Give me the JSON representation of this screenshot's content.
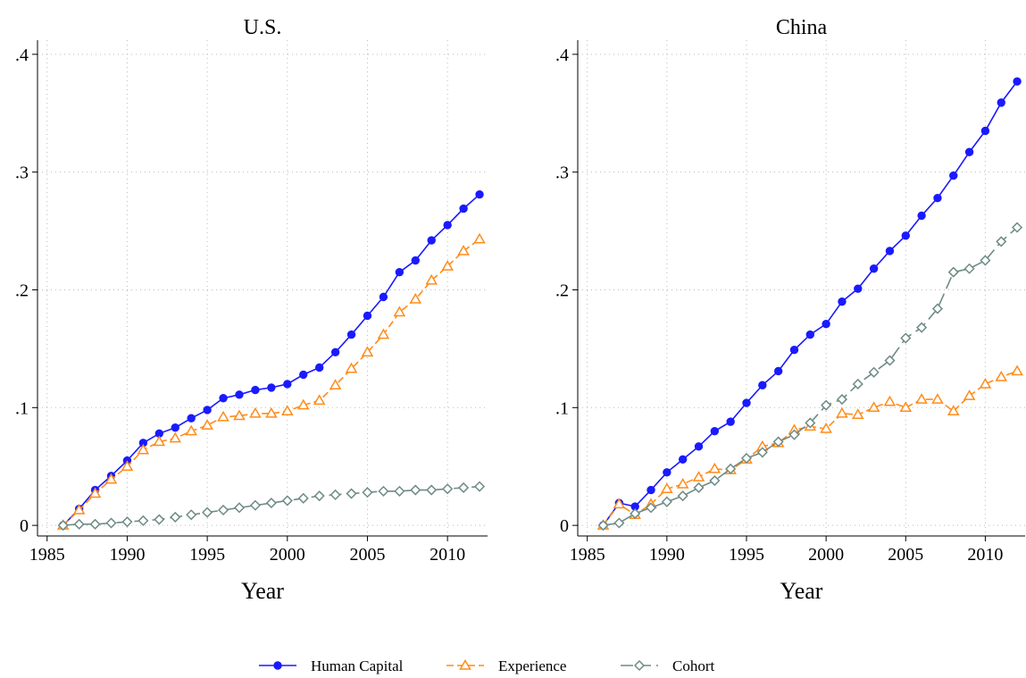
{
  "chart_data": [
    {
      "type": "line",
      "title": "U.S.",
      "x_label": "Year",
      "x": [
        1986,
        1987,
        1988,
        1989,
        1990,
        1991,
        1992,
        1993,
        1994,
        1995,
        1996,
        1997,
        1998,
        1999,
        2000,
        2001,
        2002,
        2003,
        2004,
        2005,
        2006,
        2007,
        2008,
        2009,
        2010,
        2011,
        2012
      ],
      "xlim": [
        1984.4,
        2012.5
      ],
      "xticks": [
        1985,
        1990,
        1995,
        2000,
        2005,
        2010
      ],
      "ylim": [
        -0.009,
        0.412
      ],
      "yticks": [
        0,
        {
          "value": 0.1,
          "label": ".1"
        },
        {
          "value": 0.2,
          "label": ".2"
        },
        {
          "value": 0.3,
          "label": ".3"
        },
        {
          "value": 0.4,
          "label": ".4"
        }
      ],
      "grid": true,
      "series": [
        {
          "name": "Human Capital",
          "color": "#1a1aff",
          "marker": "circle",
          "values": [
            0,
            0.014,
            0.03,
            0.042,
            0.055,
            0.07,
            0.078,
            0.083,
            0.091,
            0.098,
            0.108,
            0.111,
            0.115,
            0.117,
            0.12,
            0.128,
            0.134,
            0.147,
            0.162,
            0.178,
            0.194,
            0.215,
            0.225,
            0.242,
            0.255,
            0.269,
            0.281
          ]
        },
        {
          "name": "Experience",
          "color": "#ff8c1a",
          "marker": "triangle",
          "values": [
            0,
            0.013,
            0.027,
            0.039,
            0.05,
            0.064,
            0.071,
            0.074,
            0.08,
            0.085,
            0.092,
            0.093,
            0.095,
            0.095,
            0.097,
            0.102,
            0.106,
            0.119,
            0.133,
            0.147,
            0.162,
            0.181,
            0.192,
            0.208,
            0.22,
            0.233,
            0.243
          ]
        },
        {
          "name": "Cohort",
          "color": "#6e8b86",
          "marker": "diamond",
          "values": [
            0,
            0.001,
            0.001,
            0.002,
            0.003,
            0.004,
            0.005,
            0.007,
            0.009,
            0.011,
            0.013,
            0.015,
            0.017,
            0.019,
            0.021,
            0.023,
            0.025,
            0.026,
            0.027,
            0.028,
            0.029,
            0.029,
            0.03,
            0.03,
            0.031,
            0.032,
            0.033
          ]
        }
      ]
    },
    {
      "type": "line",
      "title": "China",
      "x_label": "Year",
      "x": [
        1986,
        1987,
        1988,
        1989,
        1990,
        1991,
        1992,
        1993,
        1994,
        1995,
        1996,
        1997,
        1998,
        1999,
        2000,
        2001,
        2002,
        2003,
        2004,
        2005,
        2006,
        2007,
        2008,
        2009,
        2010,
        2011,
        2012
      ],
      "xlim": [
        1984.4,
        2012.5
      ],
      "xticks": [
        1985,
        1990,
        1995,
        2000,
        2005,
        2010
      ],
      "ylim": [
        -0.009,
        0.412
      ],
      "yticks": [
        0,
        {
          "value": 0.1,
          "label": ".1"
        },
        {
          "value": 0.2,
          "label": ".2"
        },
        {
          "value": 0.3,
          "label": ".3"
        },
        {
          "value": 0.4,
          "label": ".4"
        }
      ],
      "grid": true,
      "series": [
        {
          "name": "Human Capital",
          "color": "#1a1aff",
          "marker": "circle",
          "values": [
            0,
            0.019,
            0.016,
            0.03,
            0.045,
            0.056,
            0.067,
            0.08,
            0.088,
            0.104,
            0.119,
            0.131,
            0.149,
            0.162,
            0.171,
            0.19,
            0.201,
            0.218,
            0.233,
            0.246,
            0.263,
            0.278,
            0.297,
            0.317,
            0.335,
            0.359,
            0.377
          ]
        },
        {
          "name": "Experience",
          "color": "#ff8c1a",
          "marker": "triangle",
          "values": [
            0,
            0.018,
            0.009,
            0.018,
            0.031,
            0.035,
            0.041,
            0.048,
            0.047,
            0.056,
            0.067,
            0.07,
            0.081,
            0.084,
            0.082,
            0.095,
            0.094,
            0.1,
            0.105,
            0.1,
            0.107,
            0.107,
            0.097,
            0.11,
            0.12,
            0.126,
            0.131
          ]
        },
        {
          "name": "Cohort",
          "color": "#6e8b86",
          "marker": "diamond",
          "values": [
            0,
            0.002,
            0.01,
            0.015,
            0.02,
            0.025,
            0.032,
            0.038,
            0.048,
            0.057,
            0.062,
            0.071,
            0.077,
            0.087,
            0.102,
            0.107,
            0.12,
            0.13,
            0.14,
            0.159,
            0.168,
            0.184,
            0.215,
            0.218,
            0.225,
            0.241,
            0.253
          ]
        }
      ]
    }
  ]
}
